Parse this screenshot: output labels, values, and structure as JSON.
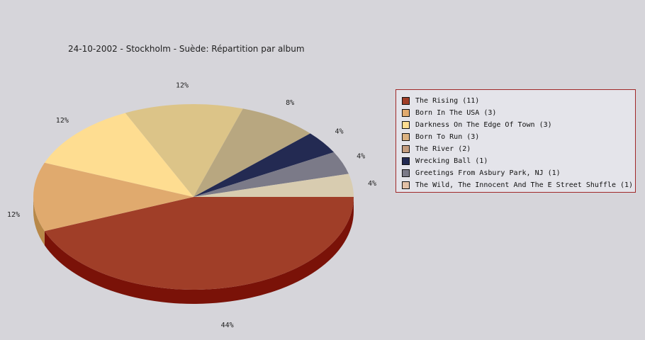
{
  "chart_data": {
    "type": "pie",
    "title": "24-10-2002 - Stockholm - Suède:  Répartition par album",
    "slices": [
      {
        "label": "The Rising (11)",
        "value": 11,
        "pct_label": "44%",
        "color": "#a03e28",
        "side": "#7a1208"
      },
      {
        "label": "Born In The USA (3)",
        "value": 3,
        "pct_label": "12%",
        "color": "#e0aa6e",
        "side": "#b88848"
      },
      {
        "label": "Darkness On The Edge Of Town (3)",
        "value": 3,
        "pct_label": "12%",
        "color": "#fedd91",
        "side": "#d2b36c"
      },
      {
        "label": "Born To Run (3)",
        "value": 3,
        "pct_label": "12%",
        "color": "#dcc488",
        "side": "#b49e66"
      },
      {
        "label": "The River (2)",
        "value": 2,
        "pct_label": "8%",
        "color": "#b8a780",
        "side": "#948460"
      },
      {
        "label": "Wrecking Ball (1)",
        "value": 1,
        "pct_label": "4%",
        "color": "#232a52",
        "side": "#141a38"
      },
      {
        "label": "Greetings From Asbury Park, NJ (1)",
        "value": 1,
        "pct_label": "4%",
        "color": "#7b7a88",
        "side": "#5a5966"
      },
      {
        "label": "The Wild, The Innocent And The E Street Shuffle (1)",
        "value": 1,
        "pct_label": "4%",
        "color": "#d8ccb0",
        "side": "#b0a68c"
      }
    ],
    "legend_position": "right"
  },
  "legend": {
    "border_color": "#a02828",
    "swatch_colors": [
      "#a03e28",
      "#e0aa6e",
      "#fedd91",
      "#dcb382",
      "#c39c7e",
      "#232a52",
      "#7b7a88",
      "#e2c0a6"
    ]
  }
}
